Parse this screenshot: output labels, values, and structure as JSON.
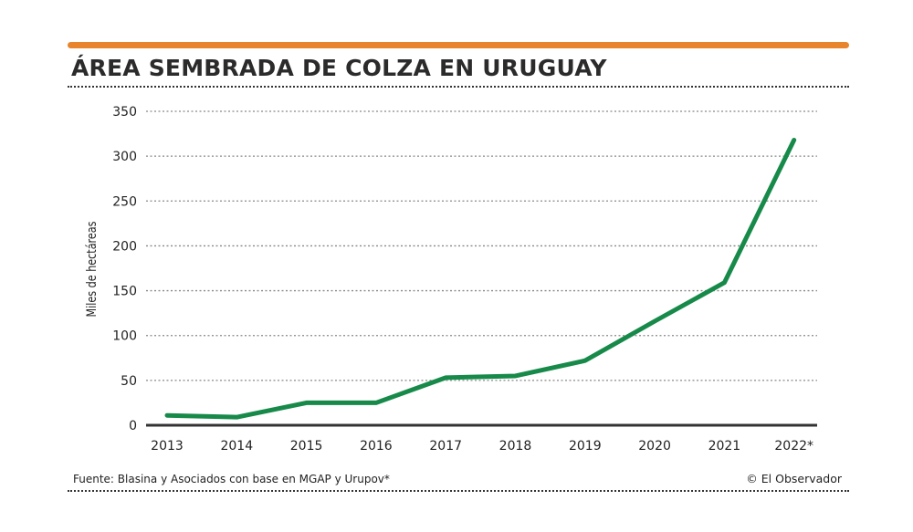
{
  "title": "ÁREA SEMBRADA DE COLZA EN URUGUAY",
  "source": "Fuente: Blasina y Asociados con base en MGAP y Urupov*",
  "credit": "© El Observador",
  "colors": {
    "accent": "#e8842c",
    "line": "#178a4a",
    "text": "#2b2b2b"
  },
  "chart_data": {
    "type": "line",
    "title": "ÁREA SEMBRADA DE COLZA EN URUGUAY",
    "xlabel": "",
    "ylabel": "Miles de hectáreas",
    "categories": [
      "2013",
      "2014",
      "2015",
      "2016",
      "2017",
      "2018",
      "2019",
      "2020",
      "2021",
      "2022*"
    ],
    "values": [
      11,
      9,
      25,
      25,
      53,
      55,
      72,
      116,
      159,
      318
    ],
    "yticks": [
      0,
      50,
      100,
      150,
      200,
      250,
      300,
      350
    ],
    "ylim": [
      0,
      350
    ],
    "grid": true
  }
}
